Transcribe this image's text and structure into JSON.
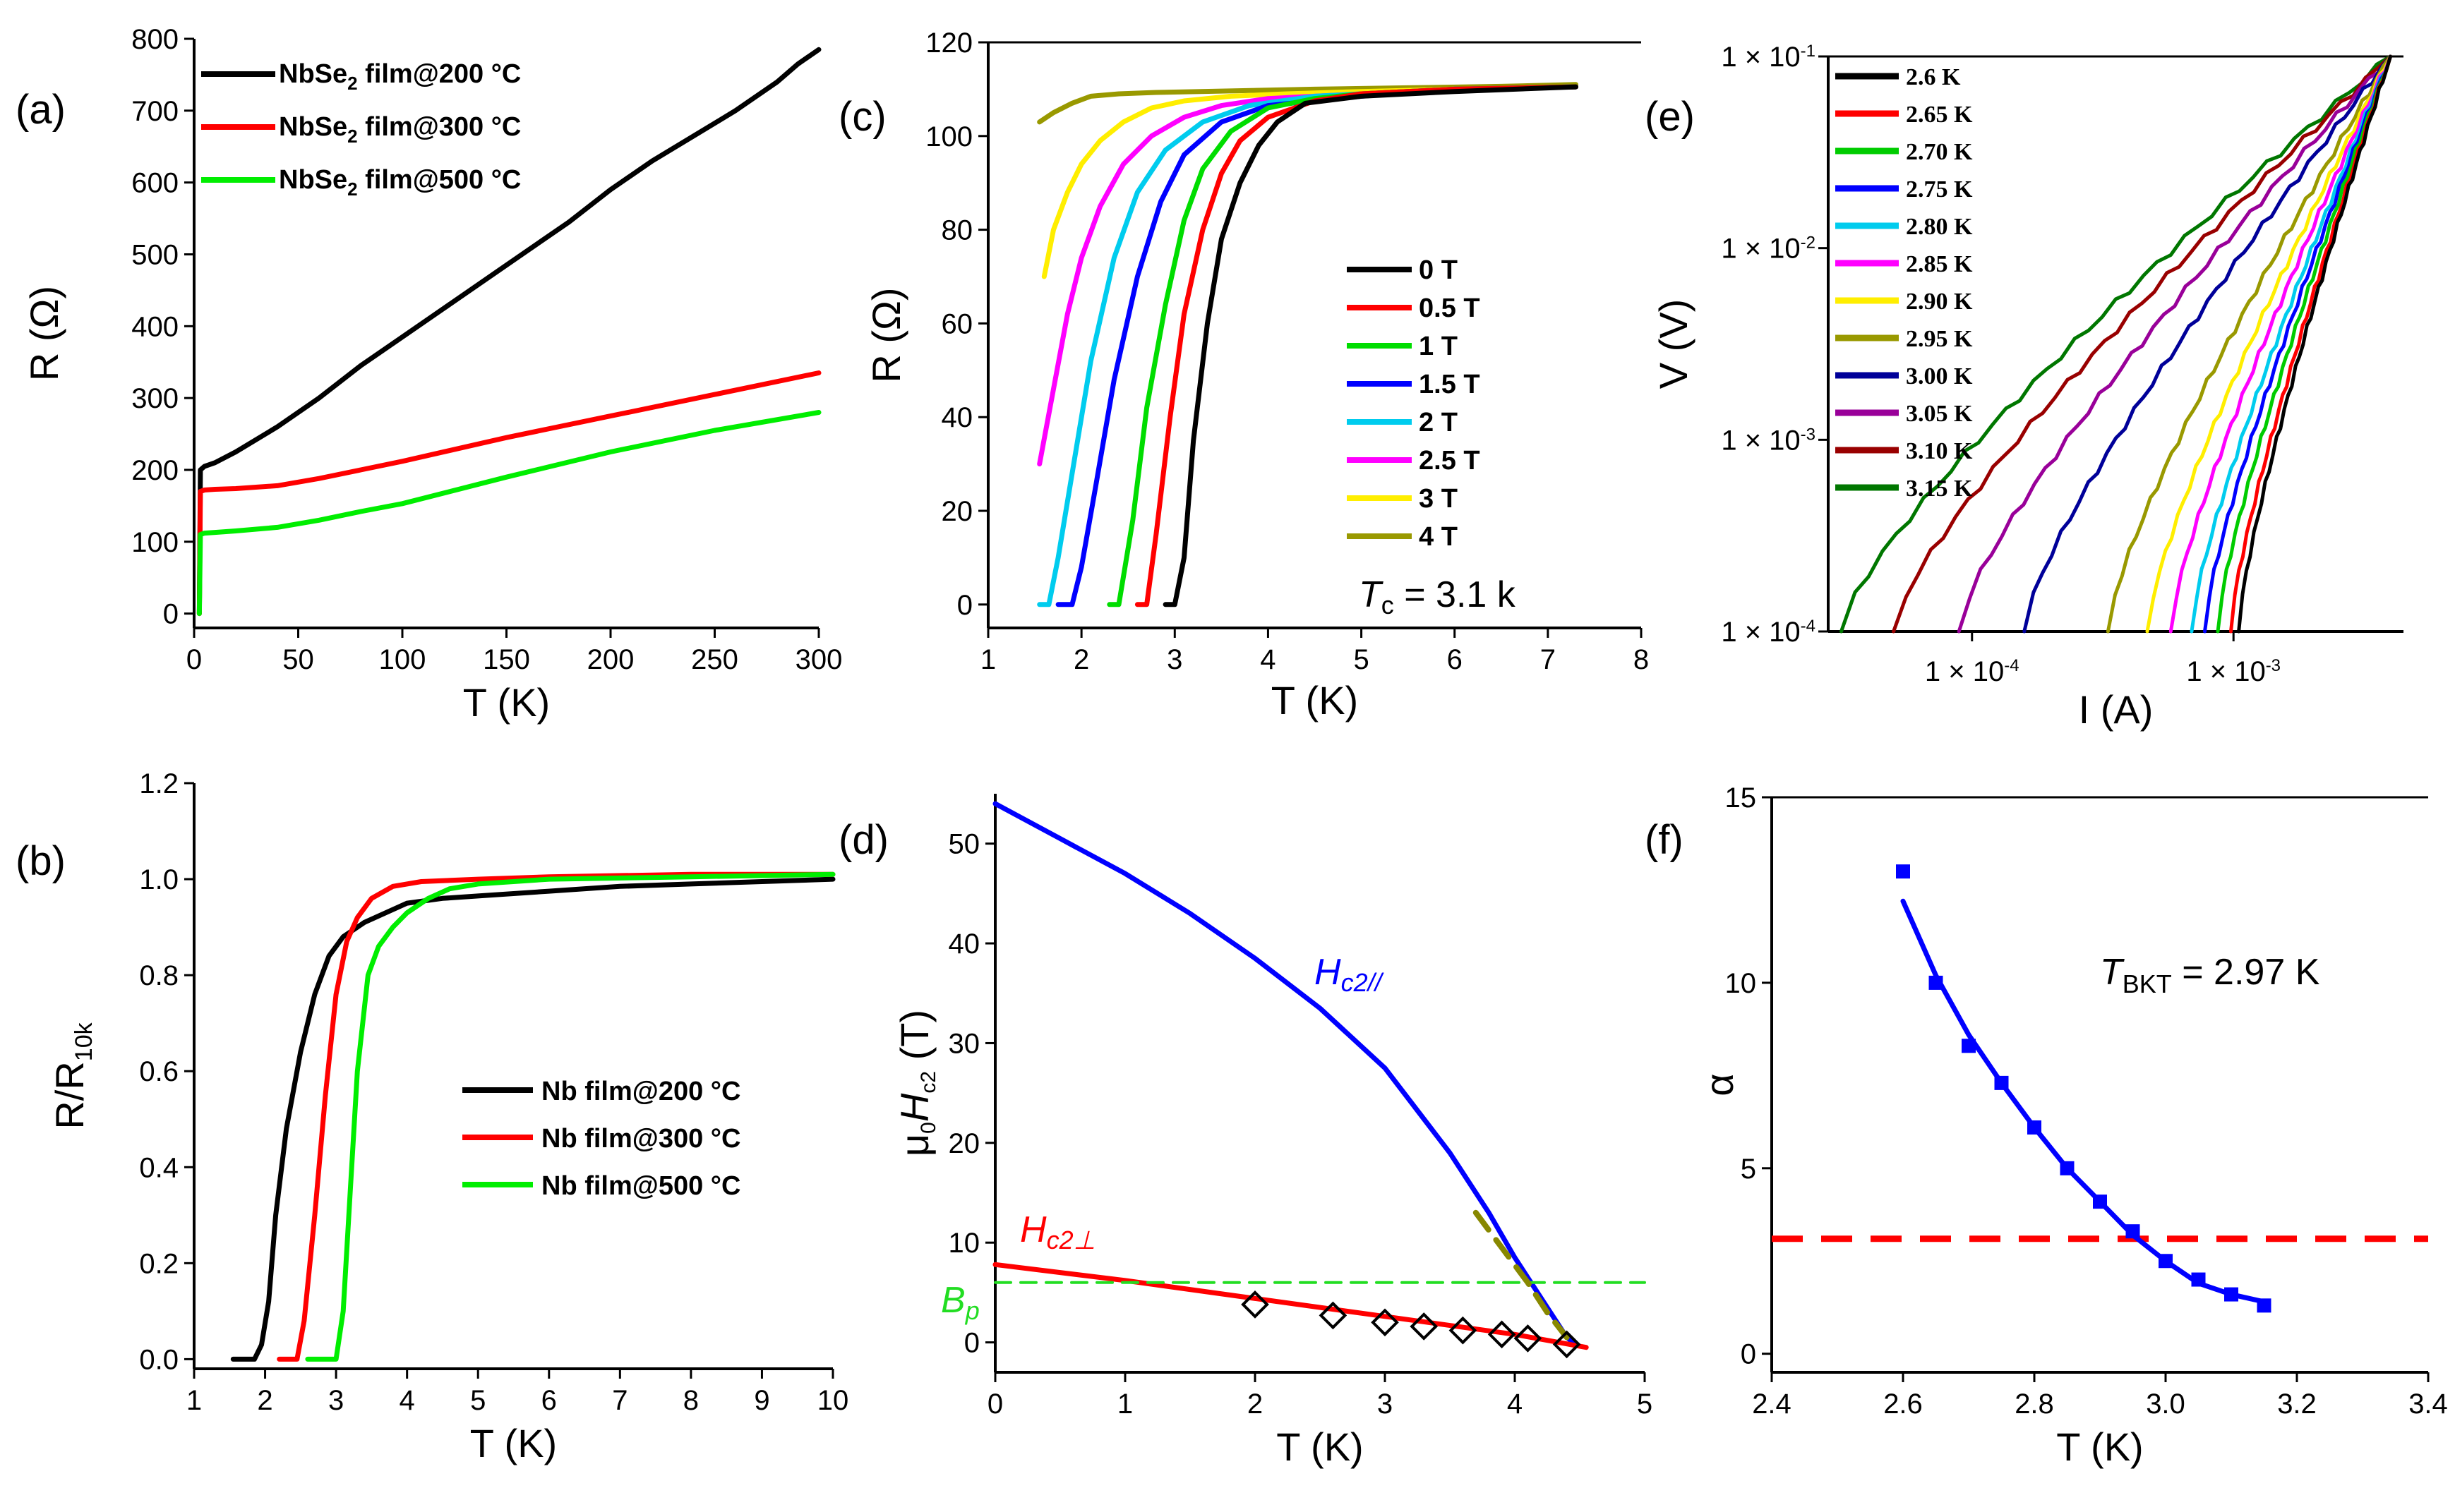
{
  "chart_data": [
    {
      "id": "a",
      "panel_label": "(a)",
      "type": "line",
      "xlabel": "T (K)",
      "ylabel": "R (Ω)",
      "xlim": [
        0,
        300
      ],
      "ylim": [
        -20,
        800
      ],
      "xticks": [
        0,
        50,
        100,
        150,
        200,
        250,
        300
      ],
      "yticks": [
        0,
        100,
        200,
        300,
        400,
        500,
        600,
        700,
        800
      ],
      "legend_position": "top-left",
      "series": [
        {
          "name": "NbSe2 film@200 °C",
          "legend_main": "NbSe",
          "legend_sub": "2",
          "legend_rest": " film@200 °C",
          "color": "#000000",
          "x": [
            2.5,
            3,
            5,
            10,
            20,
            40,
            60,
            80,
            100,
            120,
            140,
            160,
            180,
            200,
            220,
            240,
            260,
            280,
            290,
            300
          ],
          "y": [
            0,
            200,
            205,
            210,
            225,
            260,
            300,
            345,
            385,
            425,
            465,
            505,
            545,
            590,
            630,
            665,
            700,
            740,
            765,
            785
          ]
        },
        {
          "name": "NbSe2 film@300 °C",
          "legend_main": "NbSe",
          "legend_sub": "2",
          "legend_rest": " film@300 °C",
          "color": "#ff0000",
          "x": [
            2.5,
            3,
            5,
            10,
            20,
            40,
            60,
            80,
            100,
            150,
            200,
            250,
            300
          ],
          "y": [
            0,
            170,
            172,
            173,
            174,
            178,
            188,
            200,
            212,
            245,
            275,
            305,
            335
          ]
        },
        {
          "name": "NbSe2 film@500 °C",
          "legend_main": "NbSe",
          "legend_sub": "2",
          "legend_rest": " film@500 °C",
          "color": "#00ee00",
          "x": [
            2.5,
            3,
            5,
            10,
            20,
            40,
            60,
            80,
            100,
            150,
            200,
            250,
            300
          ],
          "y": [
            0,
            110,
            112,
            113,
            115,
            120,
            130,
            142,
            153,
            190,
            225,
            255,
            280
          ]
        }
      ]
    },
    {
      "id": "b",
      "panel_label": "(b)",
      "type": "line",
      "xlabel": "T (K)",
      "ylabel_main": "R/R",
      "ylabel_sub": "10k",
      "xlim": [
        1,
        10
      ],
      "ylim": [
        -0.02,
        1.2
      ],
      "xticks": [
        1,
        2,
        3,
        4,
        5,
        6,
        7,
        8,
        9,
        10
      ],
      "yticks": [
        0.0,
        0.2,
        0.4,
        0.6,
        0.8,
        1.0,
        1.2
      ],
      "legend_position": "center-right",
      "series": [
        {
          "name": "Nb film@200 °C",
          "color": "#000000",
          "x": [
            1.55,
            1.85,
            1.95,
            2.05,
            2.15,
            2.3,
            2.5,
            2.7,
            2.9,
            3.1,
            3.4,
            3.7,
            4.0,
            4.5,
            5,
            6,
            7,
            8,
            9,
            10
          ],
          "y": [
            0,
            0,
            0.03,
            0.12,
            0.3,
            0.48,
            0.64,
            0.76,
            0.84,
            0.88,
            0.91,
            0.93,
            0.95,
            0.96,
            0.965,
            0.975,
            0.985,
            0.99,
            0.995,
            1.0
          ]
        },
        {
          "name": "Nb film@300 °C",
          "color": "#ff0000",
          "x": [
            2.2,
            2.45,
            2.55,
            2.7,
            2.85,
            3.0,
            3.15,
            3.3,
            3.5,
            3.8,
            4.2,
            5,
            6,
            8,
            10
          ],
          "y": [
            0,
            0,
            0.08,
            0.3,
            0.55,
            0.76,
            0.87,
            0.92,
            0.96,
            0.985,
            0.995,
            1.0,
            1.005,
            1.01,
            1.01
          ]
        },
        {
          "name": "Nb film@500 °C",
          "color": "#00ee00",
          "x": [
            2.6,
            3.0,
            3.1,
            3.2,
            3.3,
            3.45,
            3.6,
            3.8,
            4.0,
            4.3,
            4.6,
            5,
            6,
            8,
            10
          ],
          "y": [
            0,
            0,
            0.1,
            0.35,
            0.6,
            0.8,
            0.86,
            0.9,
            0.93,
            0.96,
            0.98,
            0.99,
            1.0,
            1.005,
            1.01
          ]
        }
      ]
    },
    {
      "id": "c",
      "panel_label": "(c)",
      "type": "line",
      "xlabel": "T (K)",
      "ylabel": "R (Ω)",
      "xlim": [
        1,
        8
      ],
      "ylim": [
        -5,
        120
      ],
      "xticks": [
        1,
        2,
        3,
        4,
        5,
        6,
        7,
        8
      ],
      "yticks": [
        0,
        20,
        40,
        60,
        80,
        100,
        120
      ],
      "legend_position": "center-right",
      "annotation_main": "T",
      "annotation_sub": "c",
      "annotation_rest": " = 3.1 k",
      "series": [
        {
          "name": "0 T",
          "color": "#000000",
          "x": [
            2.9,
            3.0,
            3.1,
            3.2,
            3.35,
            3.5,
            3.7,
            3.9,
            4.1,
            4.4,
            5,
            6,
            7.3
          ],
          "y": [
            0,
            0,
            10,
            35,
            60,
            78,
            90,
            98,
            103,
            107,
            108.5,
            109.5,
            110.5
          ]
        },
        {
          "name": "0.5 T",
          "color": "#ff0000",
          "x": [
            2.6,
            2.7,
            2.8,
            2.95,
            3.1,
            3.3,
            3.5,
            3.7,
            4.0,
            4.5,
            5,
            6,
            7.3
          ],
          "y": [
            0,
            0,
            15,
            40,
            62,
            80,
            92,
            99,
            104,
            107.5,
            109,
            110,
            110.5
          ]
        },
        {
          "name": "1 T",
          "color": "#00dd00",
          "x": [
            2.3,
            2.4,
            2.55,
            2.7,
            2.9,
            3.1,
            3.3,
            3.6,
            4.0,
            4.5,
            5,
            6,
            7.3
          ],
          "y": [
            0,
            0,
            18,
            42,
            64,
            82,
            93,
            101,
            106,
            108,
            109,
            110,
            110.5
          ]
        },
        {
          "name": "1.5 T",
          "color": "#0000ff",
          "x": [
            1.75,
            1.9,
            2.0,
            2.15,
            2.35,
            2.6,
            2.85,
            3.1,
            3.5,
            4.0,
            5,
            6,
            7.3
          ],
          "y": [
            0,
            0,
            8,
            25,
            48,
            70,
            86,
            96,
            103,
            106.5,
            108.5,
            110,
            110.5
          ]
        },
        {
          "name": "2 T",
          "color": "#00ccee",
          "x": [
            1.55,
            1.65,
            1.75,
            1.9,
            2.1,
            2.35,
            2.6,
            2.9,
            3.3,
            3.8,
            4.5,
            6,
            7.3
          ],
          "y": [
            0,
            0,
            10,
            28,
            52,
            74,
            88,
            97,
            103,
            106.5,
            108.5,
            110,
            110.5
          ]
        },
        {
          "name": "2.5 T",
          "color": "#ff00ff",
          "x": [
            1.55,
            1.7,
            1.85,
            2.0,
            2.2,
            2.45,
            2.75,
            3.1,
            3.5,
            4.0,
            5,
            6,
            7.3
          ],
          "y": [
            30,
            46,
            62,
            74,
            85,
            94,
            100,
            104,
            106.5,
            108,
            109,
            110,
            110.5
          ]
        },
        {
          "name": "3 T",
          "color": "#ffee00",
          "x": [
            1.6,
            1.7,
            1.85,
            2.0,
            2.2,
            2.45,
            2.75,
            3.1,
            3.6,
            4.2,
            5,
            6,
            7.3
          ],
          "y": [
            70,
            80,
            88,
            94,
            99,
            103,
            106,
            107.5,
            108.5,
            109,
            109.5,
            110,
            110.5
          ]
        },
        {
          "name": "4 T",
          "color": "#999900",
          "x": [
            1.55,
            1.7,
            1.9,
            2.1,
            2.4,
            2.8,
            3.5,
            4.5,
            5.5,
            6.5,
            7.3
          ],
          "y": [
            103,
            105,
            107,
            108.5,
            109,
            109.3,
            109.6,
            110,
            110.3,
            110.6,
            111
          ]
        }
      ]
    },
    {
      "id": "d",
      "panel_label": "(d)",
      "type": "line",
      "xlabel": "T (K)",
      "ylabel_parts": [
        "μ",
        "0",
        "H",
        "c2",
        " (T)"
      ],
      "xlim": [
        0,
        5
      ],
      "ylim": [
        -3,
        55
      ],
      "xticks": [
        0,
        1,
        2,
        3,
        4,
        5
      ],
      "yticks": [
        0,
        10,
        20,
        30,
        40,
        50
      ],
      "annotations": [
        {
          "main": "H",
          "sub": "c2//",
          "color": "#0000ff"
        },
        {
          "main": "H",
          "sub": "c2⊥",
          "color": "#ff0000"
        },
        {
          "main": "B",
          "sub": "p",
          "color": "#22dd22"
        }
      ],
      "series": [
        {
          "name": "Hc2 parallel fit",
          "color": "#0000ff",
          "x": [
            0,
            0.5,
            1,
            1.5,
            2,
            2.5,
            3,
            3.5,
            3.8,
            4.0,
            4.2,
            4.4,
            4.45
          ],
          "y": [
            54,
            50.5,
            47,
            43,
            38.5,
            33.5,
            27.5,
            19,
            13,
            8.5,
            4.5,
            0.5,
            0
          ]
        },
        {
          "name": "Hc2 perpendicular fit",
          "color": "#ff0000",
          "x": [
            0,
            1,
            2,
            3,
            4,
            4.55
          ],
          "y": [
            7.8,
            6.2,
            4.4,
            2.6,
            0.8,
            -0.5
          ]
        },
        {
          "name": "Bp Pauli limit",
          "color": "#22dd22",
          "dashed": true,
          "x": [
            0,
            5
          ],
          "y": [
            6,
            6
          ]
        },
        {
          "name": "Hc2 parallel data",
          "color": "#888800",
          "dashed": true,
          "x": [
            3.7,
            3.9,
            4.1,
            4.25,
            4.4
          ],
          "y": [
            13,
            9.5,
            6,
            3,
            0.5
          ]
        }
      ],
      "markers": {
        "name": "Hc2 perpendicular data",
        "symbol": "diamond",
        "x": [
          2.0,
          2.6,
          3.0,
          3.3,
          3.6,
          3.9,
          4.1,
          4.4
        ],
        "y": [
          3.8,
          2.7,
          2.0,
          1.6,
          1.2,
          0.8,
          0.4,
          -0.2
        ]
      }
    },
    {
      "id": "e",
      "panel_label": "(e)",
      "type": "line",
      "scale": "log-log",
      "xlabel": "I (A)",
      "ylabel": "V (V)",
      "xlim_log10": [
        -4.55,
        -2.35
      ],
      "ylim_log10": [
        -4,
        -1
      ],
      "xtick_labels": [
        "1 × 10",
        "1 × 10"
      ],
      "xtick_exponents": [
        "-4",
        "-3"
      ],
      "xtick_values_log10": [
        -4,
        -3
      ],
      "ytick_labels": [
        "1 × 10",
        "1 × 10",
        "1 × 10",
        "1 × 10"
      ],
      "ytick_exponents": [
        "-1",
        "-2",
        "-3",
        "-4"
      ],
      "ytick_values_log10": [
        -1,
        -2,
        -3,
        -4
      ],
      "legend_position": "top-left",
      "common_end_log10": [
        -2.4,
        -1.0
      ],
      "series": [
        {
          "name": "2.6 K",
          "color": "#000000",
          "start_log10x": -2.98
        },
        {
          "name": "2.65 K",
          "color": "#ff0000",
          "start_log10x": -3.01
        },
        {
          "name": "2.70 K",
          "color": "#00cc00",
          "start_log10x": -3.06
        },
        {
          "name": "2.75 K",
          "color": "#0000ff",
          "start_log10x": -3.11
        },
        {
          "name": "2.80 K",
          "color": "#00ccee",
          "start_log10x": -3.16
        },
        {
          "name": "2.85 K",
          "color": "#ff00ff",
          "start_log10x": -3.24
        },
        {
          "name": "2.90 K",
          "color": "#ffee00",
          "start_log10x": -3.33
        },
        {
          "name": "2.95 K",
          "color": "#999900",
          "start_log10x": -3.48
        },
        {
          "name": "3.00 K",
          "color": "#000099",
          "start_log10x": -3.8
        },
        {
          "name": "3.05 K",
          "color": "#990099",
          "start_log10x": -4.05
        },
        {
          "name": "3.10 K",
          "color": "#990000",
          "start_log10x": -4.3
        },
        {
          "name": "3.15 K",
          "color": "#007700",
          "start_log10x": -4.5
        }
      ]
    },
    {
      "id": "f",
      "panel_label": "(f)",
      "type": "scatter",
      "xlabel": "T (K)",
      "ylabel": "α",
      "xlim": [
        2.4,
        3.4
      ],
      "ylim": [
        -0.5,
        15
      ],
      "xticks": [
        2.4,
        2.6,
        2.8,
        3.0,
        3.2,
        3.4
      ],
      "xtick_labels": [
        "2.4",
        "2.6",
        "2.8",
        "3.0",
        "3.2",
        "3.4"
      ],
      "yticks": [
        0,
        5,
        10,
        15
      ],
      "annotation_main": "T",
      "annotation_sub": "BKT",
      "annotation_rest": " = 2.97 K",
      "points": {
        "color": "#0000ff",
        "x": [
          2.6,
          2.65,
          2.7,
          2.75,
          2.8,
          2.85,
          2.9,
          2.95,
          3.0,
          3.05,
          3.1,
          3.15
        ],
        "y": [
          13.0,
          10.0,
          8.3,
          7.3,
          6.1,
          5.0,
          4.1,
          3.3,
          2.5,
          2.0,
          1.6,
          1.3
        ]
      },
      "fit": {
        "color": "#0000ff",
        "x": [
          2.6,
          2.65,
          2.7,
          2.75,
          2.8,
          2.85,
          2.9,
          2.95,
          3.0,
          3.05,
          3.1,
          3.15
        ],
        "y": [
          12.2,
          10.2,
          8.6,
          7.3,
          6.1,
          5.0,
          4.1,
          3.2,
          2.5,
          1.9,
          1.6,
          1.4
        ]
      },
      "reference_line": {
        "color": "#ff0000",
        "y": 3.1,
        "dashed": true
      }
    }
  ]
}
